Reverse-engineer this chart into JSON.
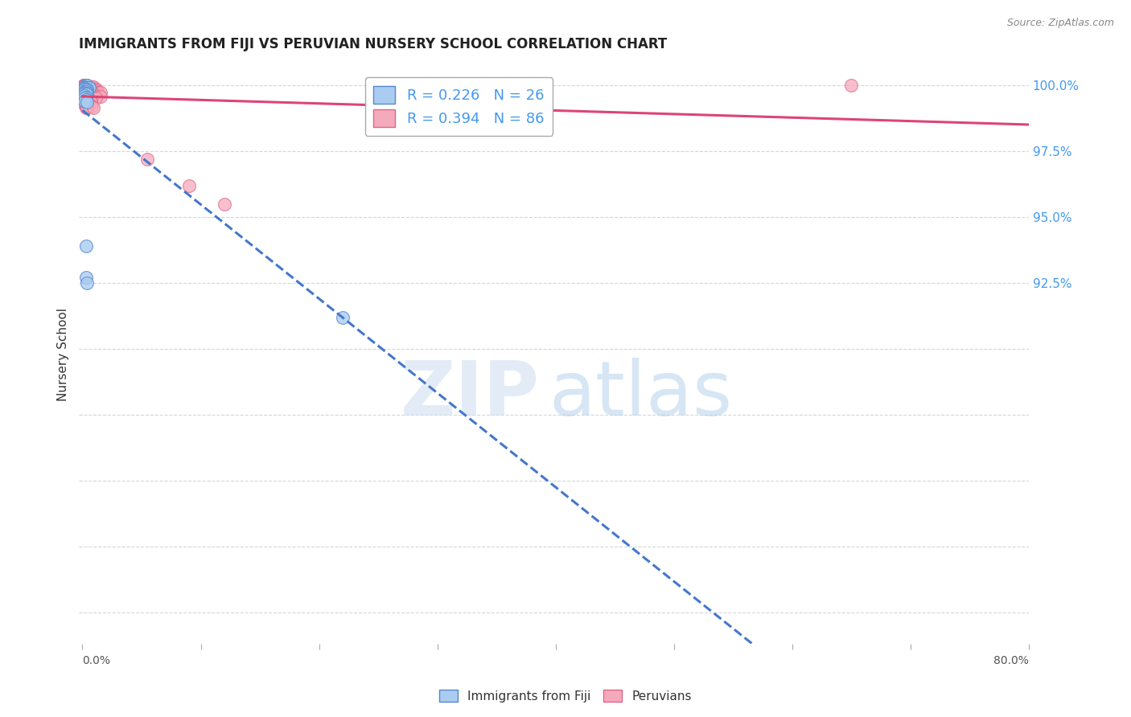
{
  "title": "IMMIGRANTS FROM FIJI VS PERUVIAN NURSERY SCHOOL CORRELATION CHART",
  "source": "Source: ZipAtlas.com",
  "ylabel": "Nursery School",
  "xlim": [
    0.0,
    0.8
  ],
  "ylim": [
    0.788,
    1.008
  ],
  "grid_color": "#cccccc",
  "background_color": "#ffffff",
  "fiji_color": "#aaccf0",
  "fiji_edge_color": "#5588cc",
  "peru_color": "#f5aabb",
  "peru_edge_color": "#e06688",
  "fiji_R": 0.226,
  "fiji_N": 26,
  "peru_R": 0.394,
  "peru_N": 86,
  "fiji_line_color": "#4477cc",
  "peru_line_color": "#dd4477",
  "legend_label_fiji": "Immigrants from Fiji",
  "legend_label_peru": "Peruvians",
  "ytick_vals": [
    1.0,
    0.975,
    0.95,
    0.925,
    0.9,
    0.875,
    0.85,
    0.825,
    0.8
  ],
  "ytick_labels": [
    "100.0%",
    "97.5%",
    "95.0%",
    "92.5%",
    "",
    "",
    "",
    "",
    ""
  ],
  "fiji_scatter_x": [
    0.003,
    0.004,
    0.002,
    0.002,
    0.003,
    0.005,
    0.004,
    0.006,
    0.004,
    0.002,
    0.003,
    0.002,
    0.003,
    0.002,
    0.004,
    0.003,
    0.002,
    0.003,
    0.002,
    0.003,
    0.002,
    0.004,
    0.003,
    0.003,
    0.004,
    0.22
  ],
  "fiji_scatter_y": [
    1.0,
    1.0,
    0.9993,
    0.999,
    0.999,
    0.999,
    0.999,
    0.999,
    0.9985,
    0.9983,
    0.998,
    0.9975,
    0.9975,
    0.997,
    0.997,
    0.9965,
    0.996,
    0.9955,
    0.995,
    0.9945,
    0.994,
    0.9935,
    0.939,
    0.927,
    0.925,
    0.912
  ],
  "peru_scatter_x": [
    0.001,
    0.001,
    0.001,
    0.002,
    0.002,
    0.002,
    0.003,
    0.003,
    0.004,
    0.002,
    0.003,
    0.004,
    0.005,
    0.006,
    0.007,
    0.008,
    0.009,
    0.003,
    0.004,
    0.005,
    0.006,
    0.007,
    0.008,
    0.009,
    0.01,
    0.012,
    0.002,
    0.003,
    0.004,
    0.005,
    0.006,
    0.008,
    0.01,
    0.012,
    0.002,
    0.003,
    0.004,
    0.005,
    0.006,
    0.008,
    0.01,
    0.012,
    0.013,
    0.015,
    0.002,
    0.003,
    0.004,
    0.006,
    0.008,
    0.01,
    0.002,
    0.003,
    0.004,
    0.005,
    0.007,
    0.009,
    0.011,
    0.015,
    0.002,
    0.003,
    0.004,
    0.006,
    0.008,
    0.011,
    0.002,
    0.003,
    0.004,
    0.005,
    0.007,
    0.002,
    0.003,
    0.005,
    0.007,
    0.002,
    0.004,
    0.006,
    0.003,
    0.005,
    0.008,
    0.003,
    0.004,
    0.009,
    0.055,
    0.09,
    0.12,
    0.65
  ],
  "peru_scatter_y": [
    1.0,
    1.0,
    1.0,
    1.0,
    1.0,
    1.0,
    1.0,
    1.0,
    1.0,
    0.9993,
    0.9993,
    0.9993,
    0.9993,
    0.9993,
    0.9993,
    0.9993,
    0.9993,
    0.9985,
    0.9985,
    0.9985,
    0.9985,
    0.9985,
    0.9985,
    0.9985,
    0.9985,
    0.9985,
    0.9978,
    0.9978,
    0.9978,
    0.9978,
    0.9978,
    0.9978,
    0.9978,
    0.9978,
    0.9972,
    0.9972,
    0.9972,
    0.9972,
    0.9972,
    0.9972,
    0.9972,
    0.9972,
    0.9972,
    0.9972,
    0.9965,
    0.9965,
    0.9965,
    0.9965,
    0.9965,
    0.9965,
    0.9958,
    0.9958,
    0.9958,
    0.9958,
    0.9958,
    0.9958,
    0.9958,
    0.9958,
    0.995,
    0.995,
    0.995,
    0.995,
    0.995,
    0.995,
    0.9942,
    0.9942,
    0.9942,
    0.9942,
    0.9942,
    0.9935,
    0.9935,
    0.9935,
    0.9935,
    0.9928,
    0.9928,
    0.9928,
    0.992,
    0.992,
    0.992,
    0.9913,
    0.9913,
    0.9913,
    0.972,
    0.962,
    0.955,
    1.0
  ]
}
